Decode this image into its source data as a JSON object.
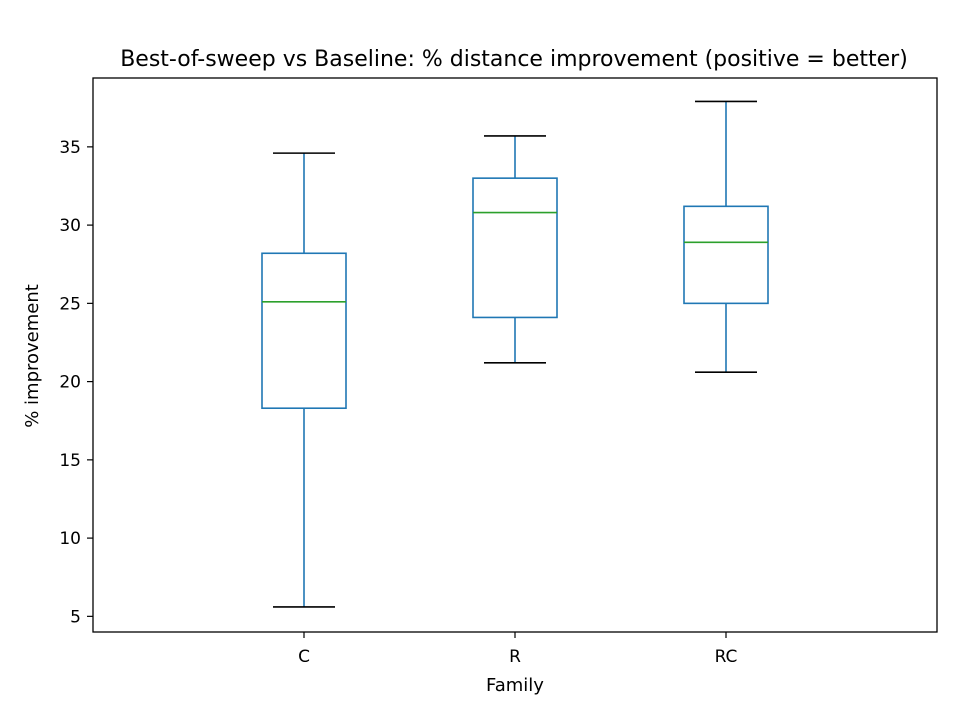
{
  "chart_data": {
    "type": "box",
    "title": "Best-of-sweep vs Baseline: % distance improvement (positive = better)",
    "xlabel": "Family",
    "ylabel": "% improvement",
    "categories": [
      "C",
      "R",
      "RC"
    ],
    "boxes": [
      {
        "category": "C",
        "whisker_low": 5.6,
        "q1": 18.3,
        "median": 25.1,
        "q3": 28.2,
        "whisker_high": 34.6
      },
      {
        "category": "R",
        "whisker_low": 21.2,
        "q1": 24.1,
        "median": 30.8,
        "q3": 33.0,
        "whisker_high": 35.7
      },
      {
        "category": "RC",
        "whisker_low": 20.6,
        "q1": 25.0,
        "median": 28.9,
        "q3": 31.2,
        "whisker_high": 37.9
      }
    ],
    "ylim": [
      4.0,
      39.4
    ],
    "yticks": [
      5,
      10,
      15,
      20,
      25,
      30,
      35
    ],
    "grid": false,
    "colors": {
      "box": "#1f77b4",
      "median": "#2ca02c",
      "whisker_cap": "#000000",
      "axes": "#000000"
    }
  }
}
